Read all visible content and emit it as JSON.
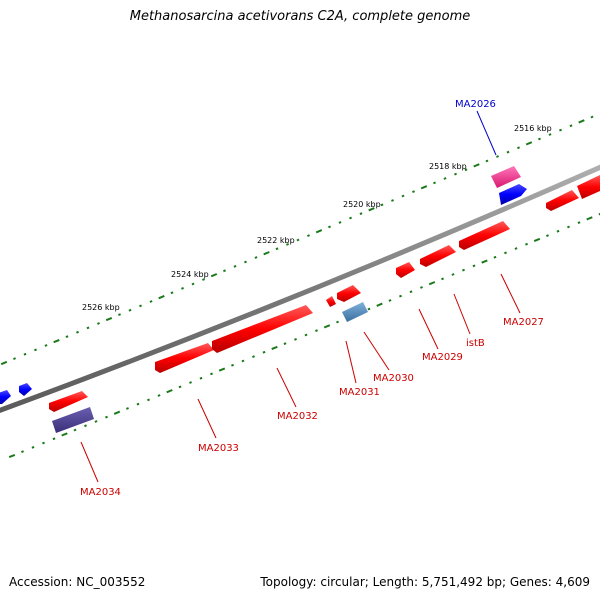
{
  "title": "Methanosarcina acetivorans C2A, complete genome",
  "accession_text": "Accession: NC_003552",
  "summary_text": "Topology: circular; Length: 5,751,492 bp; Genes: 4,609",
  "colors": {
    "backbone": "#808080",
    "forward_gene": "#ff0000",
    "reverse_gene": "#0000ff",
    "tick": "#1a7a1a",
    "label_forward": "#cc0000",
    "label_reverse": "#0000cc",
    "highlight_magenta": "#ff3399",
    "highlight_purple": "#4b3f8f",
    "highlight_steel": "#4f86b8"
  },
  "ruler_labels": [
    "2516 kbp",
    "2518 kbp",
    "2520 kbp",
    "2522 kbp",
    "2524 kbp",
    "2526 kbp"
  ],
  "gene_labels": [
    "MA2026",
    "MA2027",
    "istB",
    "MA2029",
    "MA2030",
    "MA2031",
    "MA2032",
    "MA2033",
    "MA2034"
  ]
}
